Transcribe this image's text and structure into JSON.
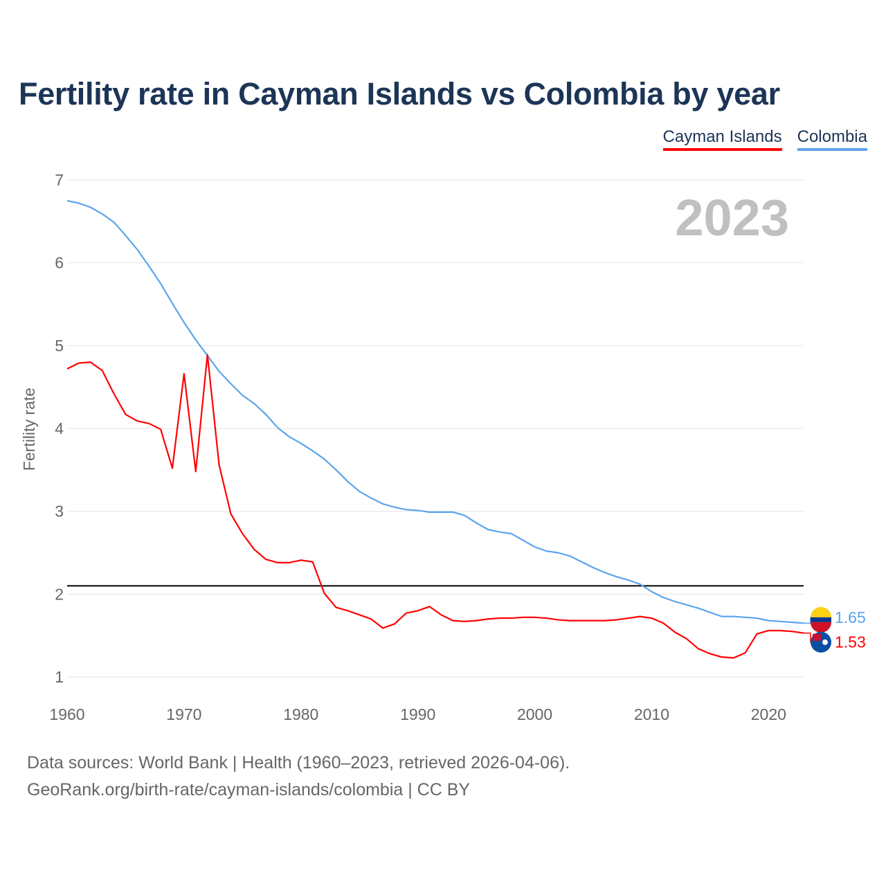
{
  "chart_data": {
    "type": "line",
    "title": "Fertility rate in Cayman Islands vs Colombia by year",
    "xlabel": "",
    "ylabel": "Fertility rate",
    "xlim": [
      1960,
      2023
    ],
    "ylim": [
      1,
      7
    ],
    "xticks": [
      1960,
      1970,
      1980,
      1990,
      2000,
      2010,
      2020
    ],
    "yticks": [
      1,
      2,
      3,
      4,
      5,
      6,
      7
    ],
    "grid": true,
    "legend_placement": "top-right",
    "year_label": "2023",
    "reference_line": 2.1,
    "x_start": 1960,
    "series": [
      {
        "name": "Cayman Islands",
        "color": "#ff0000",
        "end_label": "1.53",
        "values": [
          4.72,
          4.79,
          4.8,
          4.7,
          4.42,
          4.17,
          4.09,
          4.06,
          3.99,
          3.52,
          4.66,
          3.48,
          4.89,
          3.56,
          2.97,
          2.73,
          2.54,
          2.42,
          2.38,
          2.38,
          2.41,
          2.39,
          2.01,
          1.84,
          1.8,
          1.75,
          1.7,
          1.59,
          1.64,
          1.77,
          1.8,
          1.85,
          1.75,
          1.68,
          1.67,
          1.68,
          1.7,
          1.71,
          1.71,
          1.72,
          1.72,
          1.71,
          1.69,
          1.68,
          1.68,
          1.68,
          1.68,
          1.69,
          1.71,
          1.73,
          1.71,
          1.65,
          1.54,
          1.46,
          1.34,
          1.28,
          1.24,
          1.23,
          1.29,
          1.52,
          1.56,
          1.56,
          1.55,
          1.53
        ]
      },
      {
        "name": "Colombia",
        "color": "#5ba4ec",
        "end_label": "1.65",
        "values": [
          6.75,
          6.72,
          6.67,
          6.59,
          6.49,
          6.33,
          6.16,
          5.96,
          5.75,
          5.51,
          5.28,
          5.07,
          4.88,
          4.69,
          4.54,
          4.4,
          4.3,
          4.17,
          4.01,
          3.9,
          3.82,
          3.73,
          3.63,
          3.5,
          3.36,
          3.24,
          3.16,
          3.09,
          3.05,
          3.02,
          3.01,
          2.99,
          2.99,
          2.99,
          2.95,
          2.86,
          2.78,
          2.75,
          2.73,
          2.65,
          2.57,
          2.52,
          2.5,
          2.46,
          2.39,
          2.32,
          2.26,
          2.21,
          2.17,
          2.12,
          2.03,
          1.96,
          1.91,
          1.87,
          1.83,
          1.78,
          1.73,
          1.73,
          1.72,
          1.71,
          1.68,
          1.67,
          1.66,
          1.65
        ]
      }
    ]
  },
  "footer": {
    "line1": "Data sources: World Bank | Health (1960–2023, retrieved 2026-04-06).",
    "line2": "GeoRank.org/birth-rate/cayman-islands/colombia | CC BY"
  }
}
